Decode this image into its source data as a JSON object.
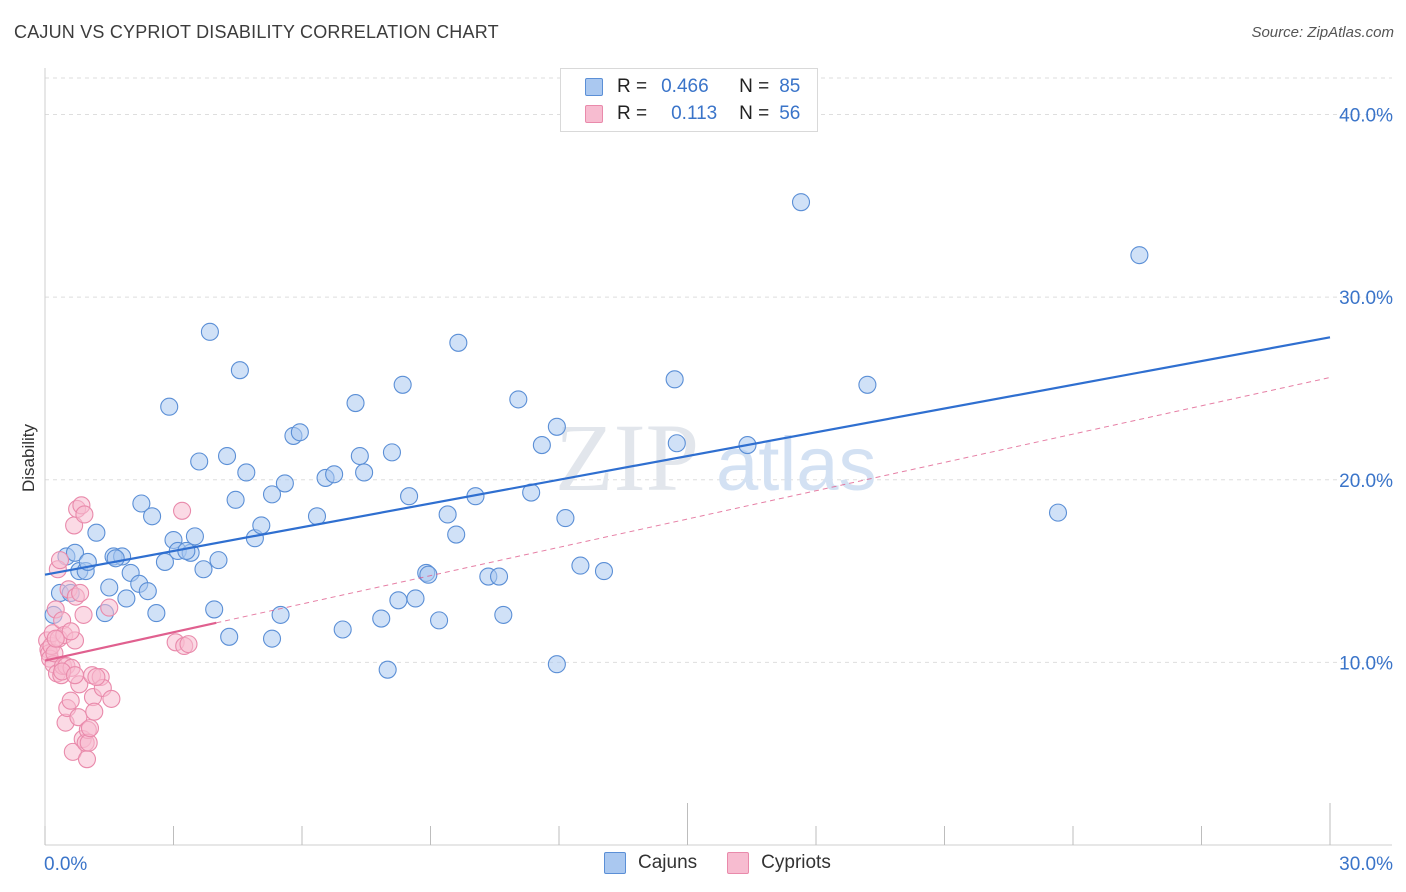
{
  "title": "CAJUN VS CYPRIOT DISABILITY CORRELATION CHART",
  "source": "Source: ZipAtlas.com",
  "watermark": {
    "zip": "ZIP",
    "atlas": "atlas"
  },
  "legend": {
    "rows": [
      {
        "r_label": "R =",
        "r_value": "0.466",
        "n_label": "N =",
        "n_value": "85"
      },
      {
        "r_label": "R =",
        "r_value": "0.113",
        "n_label": "N =",
        "n_value": "56"
      }
    ]
  },
  "bottom_legend": {
    "cajuns": "Cajuns",
    "cypriots": "Cypriots"
  },
  "colors": {
    "cajun_fill": "#aac8f0",
    "cajun_stroke": "#5b8fd6",
    "cajun_line": "#2f6fd0",
    "cypriot_fill": "#f7bcd0",
    "cypriot_stroke": "#e98aab",
    "cypriot_line": "#e0608f",
    "tick_label": "#3a74c9",
    "grid": "#dedede"
  },
  "chart_data": {
    "type": "scatter",
    "title": "CAJUN VS CYPRIOT DISABILITY CORRELATION CHART",
    "xlabel": "",
    "ylabel": "Disability",
    "xlim": [
      0,
      30
    ],
    "ylim": [
      0,
      42
    ],
    "x_tick_labels": [
      {
        "value": 0,
        "label": "0.0%"
      },
      {
        "value": 30,
        "label": "30.0%"
      }
    ],
    "y_tick_labels": [
      {
        "value": 10,
        "label": "10.0%"
      },
      {
        "value": 20,
        "label": "20.0%"
      },
      {
        "value": 30,
        "label": "30.0%"
      },
      {
        "value": 40,
        "label": "40.0%"
      }
    ],
    "series": [
      {
        "name": "Cajuns",
        "R": 0.466,
        "N": 85,
        "trend": {
          "x": [
            0,
            30
          ],
          "y": [
            14.8,
            27.8
          ],
          "style": "solid"
        },
        "points": [
          [
            0.2,
            12.6
          ],
          [
            0.35,
            13.8
          ],
          [
            0.5,
            15.8
          ],
          [
            0.6,
            13.8
          ],
          [
            0.7,
            16
          ],
          [
            0.8,
            15
          ],
          [
            0.95,
            15
          ],
          [
            1.0,
            15.5
          ],
          [
            1.2,
            17.1
          ],
          [
            1.4,
            12.7
          ],
          [
            1.5,
            14.1
          ],
          [
            1.6,
            15.8
          ],
          [
            1.8,
            15.8
          ],
          [
            1.9,
            13.5
          ],
          [
            2.0,
            14.9
          ],
          [
            2.2,
            14.3
          ],
          [
            2.25,
            18.7
          ],
          [
            2.4,
            13.9
          ],
          [
            2.5,
            18
          ],
          [
            2.6,
            12.7
          ],
          [
            2.8,
            15.5
          ],
          [
            2.9,
            24
          ],
          [
            3.0,
            16.7
          ],
          [
            3.1,
            16.1
          ],
          [
            3.4,
            16
          ],
          [
            3.5,
            16.9
          ],
          [
            3.6,
            21
          ],
          [
            3.7,
            15.1
          ],
          [
            3.85,
            28.1
          ],
          [
            3.95,
            12.9
          ],
          [
            4.05,
            15.6
          ],
          [
            4.25,
            21.3
          ],
          [
            4.3,
            11.4
          ],
          [
            4.45,
            18.9
          ],
          [
            4.55,
            26
          ],
          [
            4.7,
            20.4
          ],
          [
            4.9,
            16.8
          ],
          [
            5.05,
            17.5
          ],
          [
            5.3,
            19.2
          ],
          [
            5.3,
            11.3
          ],
          [
            5.5,
            12.6
          ],
          [
            5.6,
            19.8
          ],
          [
            5.8,
            22.4
          ],
          [
            5.95,
            22.6
          ],
          [
            6.35,
            18
          ],
          [
            6.55,
            20.1
          ],
          [
            6.75,
            20.3
          ],
          [
            6.95,
            11.8
          ],
          [
            7.25,
            24.2
          ],
          [
            7.35,
            21.3
          ],
          [
            7.45,
            20.4
          ],
          [
            7.85,
            12.4
          ],
          [
            8.0,
            9.6
          ],
          [
            8.1,
            21.5
          ],
          [
            8.25,
            13.4
          ],
          [
            8.35,
            25.2
          ],
          [
            8.5,
            19.1
          ],
          [
            8.65,
            13.5
          ],
          [
            8.9,
            14.9
          ],
          [
            8.95,
            14.8
          ],
          [
            9.2,
            12.3
          ],
          [
            9.4,
            18.1
          ],
          [
            9.6,
            17
          ],
          [
            9.65,
            27.5
          ],
          [
            10.05,
            19.1
          ],
          [
            10.35,
            14.7
          ],
          [
            10.6,
            14.7
          ],
          [
            10.7,
            12.6
          ],
          [
            11.05,
            24.4
          ],
          [
            11.35,
            19.3
          ],
          [
            11.6,
            21.9
          ],
          [
            11.95,
            22.9
          ],
          [
            11.95,
            9.9
          ],
          [
            12.15,
            17.9
          ],
          [
            12.5,
            15.3
          ],
          [
            13.05,
            15
          ],
          [
            14.7,
            25.5
          ],
          [
            14.75,
            22
          ],
          [
            16.4,
            21.9
          ],
          [
            17.65,
            35.2
          ],
          [
            19.2,
            25.2
          ],
          [
            23.65,
            18.2
          ],
          [
            25.55,
            32.3
          ],
          [
            1.65,
            15.7
          ],
          [
            3.3,
            16.1
          ]
        ]
      },
      {
        "name": "Cypriots",
        "R": 0.113,
        "N": 56,
        "trend": {
          "x": [
            0,
            30
          ],
          "y": [
            10.1,
            25.6
          ],
          "solid_until_x": 4.0
        },
        "points": [
          [
            0.05,
            11.2
          ],
          [
            0.08,
            10.7
          ],
          [
            0.1,
            10.5
          ],
          [
            0.12,
            10.2
          ],
          [
            0.15,
            10.9
          ],
          [
            0.18,
            11.6
          ],
          [
            0.2,
            9.9
          ],
          [
            0.22,
            10.5
          ],
          [
            0.25,
            12.9
          ],
          [
            0.28,
            9.4
          ],
          [
            0.3,
            15.1
          ],
          [
            0.32,
            11.3
          ],
          [
            0.35,
            15.6
          ],
          [
            0.38,
            9.3
          ],
          [
            0.4,
            12.3
          ],
          [
            0.42,
            9.8
          ],
          [
            0.45,
            11.5
          ],
          [
            0.48,
            6.7
          ],
          [
            0.5,
            9.8
          ],
          [
            0.52,
            7.5
          ],
          [
            0.55,
            14
          ],
          [
            0.6,
            7.9
          ],
          [
            0.62,
            9.7
          ],
          [
            0.65,
            5.1
          ],
          [
            0.68,
            17.5
          ],
          [
            0.7,
            11.2
          ],
          [
            0.72,
            13.6
          ],
          [
            0.75,
            18.4
          ],
          [
            0.78,
            7
          ],
          [
            0.8,
            8.8
          ],
          [
            0.82,
            13.8
          ],
          [
            0.85,
            18.6
          ],
          [
            0.88,
            5.8
          ],
          [
            0.9,
            12.6
          ],
          [
            0.92,
            18.1
          ],
          [
            0.95,
            5.6
          ],
          [
            0.98,
            4.7
          ],
          [
            1.0,
            6.3
          ],
          [
            1.02,
            5.6
          ],
          [
            1.05,
            6.4
          ],
          [
            1.1,
            9.3
          ],
          [
            1.12,
            8.1
          ],
          [
            1.15,
            7.3
          ],
          [
            1.3,
            9.2
          ],
          [
            1.35,
            8.6
          ],
          [
            1.5,
            13
          ],
          [
            1.55,
            8
          ],
          [
            3.05,
            11.1
          ],
          [
            3.2,
            18.3
          ],
          [
            3.25,
            10.9
          ],
          [
            3.35,
            11
          ],
          [
            0.6,
            11.7
          ],
          [
            0.25,
            11.3
          ],
          [
            0.4,
            9.5
          ],
          [
            0.7,
            9.3
          ],
          [
            1.2,
            9.2
          ]
        ]
      }
    ]
  }
}
